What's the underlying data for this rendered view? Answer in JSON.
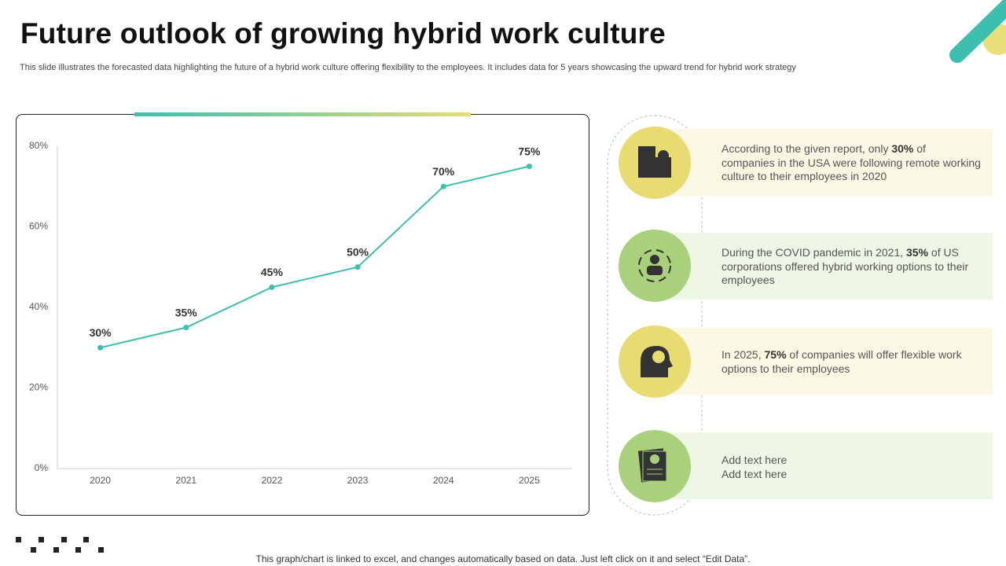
{
  "header": {
    "title": "Future outlook of growing hybrid work culture",
    "subtitle": "This slide illustrates the forecasted data highlighting the future of a hybrid work culture offering flexibility to the employees. It includes data for 5 years showcasing the upward trend for hybrid work strategy"
  },
  "chart_data": {
    "type": "line",
    "categories": [
      "2020",
      "2021",
      "2022",
      "2023",
      "2024",
      "2025"
    ],
    "values": [
      30,
      35,
      45,
      50,
      70,
      75
    ],
    "value_labels": [
      "30%",
      "35%",
      "45%",
      "50%",
      "70%",
      "75%"
    ],
    "color": "#3dbfb0",
    "ylim": [
      0,
      80
    ],
    "yticks": [
      {
        "value": 0,
        "label": "0%"
      },
      {
        "value": 20,
        "label": "20%"
      },
      {
        "value": 40,
        "label": "40%"
      },
      {
        "value": 60,
        "label": "60%"
      },
      {
        "value": 80,
        "label": "80%"
      }
    ],
    "grid": false
  },
  "panels": [
    {
      "parts": [
        "According to the given report, only ",
        "30%",
        " of companies in the USA were following remote working culture to their employees in 2020"
      ]
    },
    {
      "parts": [
        "During the COVID pandemic in 2021, ",
        "35%",
        " of US corporations offered hybrid working options to their employees"
      ]
    },
    {
      "parts": [
        "In 2025, ",
        "75%",
        " of companies will offer flexible work options to their employees"
      ]
    },
    {
      "parts": [
        "Add text here",
        "Add text here"
      ]
    }
  ],
  "footer": {
    "note": "This graph/chart is linked to excel, and changes automatically based on data. Just left click on it and select “Edit Data”."
  }
}
